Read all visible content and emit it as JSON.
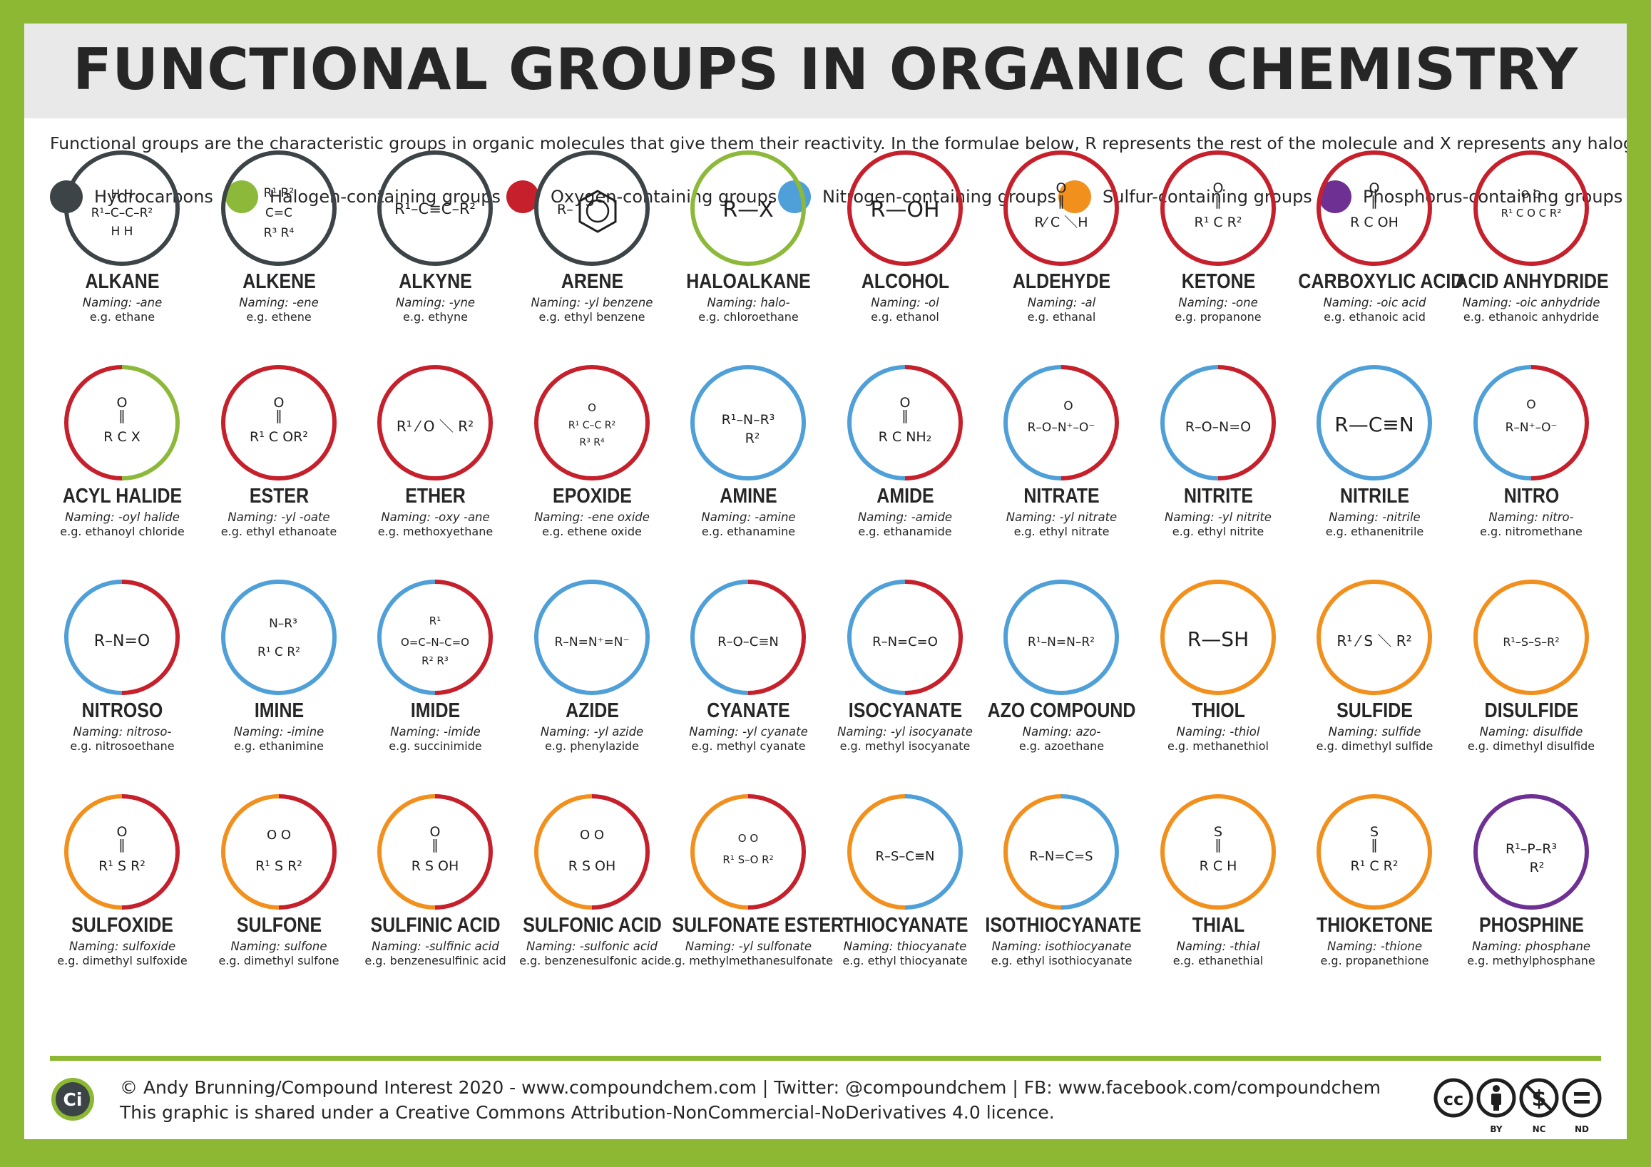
{
  "title": "FUNCTIONAL GROUPS IN ORGANIC CHEMISTRY",
  "intro": "Functional groups are the characteristic groups in organic molecules that give them their reactivity. In the formulae below, R represents the rest of the molecule and X represents any halogen atom.",
  "colors": {
    "hydrocarbon": "#3c4448",
    "halogen": "#8db93a",
    "oxygen": "#c5202b",
    "nitrogen": "#4f9fd8",
    "sulfur": "#f2901e",
    "phosphorus": "#6e3193",
    "page_border": "#8cb833"
  },
  "legend": [
    {
      "label": "Hydrocarbons",
      "color": "#3c4448"
    },
    {
      "label": "Halogen-containing groups",
      "color": "#8db93a"
    },
    {
      "label": "Oxygen-containing groups",
      "color": "#c5202b"
    },
    {
      "label": "Nitrogen-containing groups",
      "color": "#4f9fd8"
    },
    {
      "label": "Sulfur-containing groups",
      "color": "#f2901e"
    },
    {
      "label": "Phosphorus-containing groups",
      "color": "#6e3193"
    }
  ],
  "groups": [
    {
      "name": "ALKANE",
      "naming": "Naming: -ane",
      "example": "e.g. ethane",
      "ring": [
        "hydrocarbon"
      ]
    },
    {
      "name": "ALKENE",
      "naming": "Naming: -ene",
      "example": "e.g. ethene",
      "ring": [
        "hydrocarbon"
      ]
    },
    {
      "name": "ALKYNE",
      "naming": "Naming: -yne",
      "example": "e.g. ethyne",
      "ring": [
        "hydrocarbon"
      ]
    },
    {
      "name": "ARENE",
      "naming": "Naming: -yl benzene",
      "example": "e.g. ethyl benzene",
      "ring": [
        "hydrocarbon"
      ]
    },
    {
      "name": "HALOALKANE",
      "naming": "Naming: halo-",
      "example": "e.g. chloroethane",
      "ring": [
        "halogen"
      ]
    },
    {
      "name": "ALCOHOL",
      "naming": "Naming: -ol",
      "example": "e.g. ethanol",
      "ring": [
        "oxygen"
      ]
    },
    {
      "name": "ALDEHYDE",
      "naming": "Naming: -al",
      "example": "e.g. ethanal",
      "ring": [
        "oxygen"
      ]
    },
    {
      "name": "KETONE",
      "naming": "Naming: -one",
      "example": "e.g. propanone",
      "ring": [
        "oxygen"
      ]
    },
    {
      "name": "CARBOXYLIC ACID",
      "naming": "Naming: -oic acid",
      "example": "e.g. ethanoic acid",
      "ring": [
        "oxygen"
      ]
    },
    {
      "name": "ACID ANHYDRIDE",
      "naming": "Naming: -oic anhydride",
      "example": "e.g. ethanoic anhydride",
      "ring": [
        "oxygen"
      ]
    },
    {
      "name": "ACYL HALIDE",
      "naming": "Naming: -oyl halide",
      "example": "e.g. ethanoyl chloride",
      "ring": [
        "oxygen",
        "halogen"
      ]
    },
    {
      "name": "ESTER",
      "naming": "Naming: -yl -oate",
      "example": "e.g. ethyl ethanoate",
      "ring": [
        "oxygen"
      ]
    },
    {
      "name": "ETHER",
      "naming": "Naming: -oxy -ane",
      "example": "e.g. methoxyethane",
      "ring": [
        "oxygen"
      ]
    },
    {
      "name": "EPOXIDE",
      "naming": "Naming: -ene oxide",
      "example": "e.g. ethene oxide",
      "ring": [
        "oxygen"
      ]
    },
    {
      "name": "AMINE",
      "naming": "Naming: -amine",
      "example": "e.g. ethanamine",
      "ring": [
        "nitrogen"
      ]
    },
    {
      "name": "AMIDE",
      "naming": "Naming: -amide",
      "example": "e.g. ethanamide",
      "ring": [
        "nitrogen",
        "oxygen"
      ]
    },
    {
      "name": "NITRATE",
      "naming": "Naming: -yl nitrate",
      "example": "e.g. ethyl nitrate",
      "ring": [
        "nitrogen",
        "oxygen"
      ]
    },
    {
      "name": "NITRITE",
      "naming": "Naming: -yl nitrite",
      "example": "e.g. ethyl nitrite",
      "ring": [
        "nitrogen",
        "oxygen"
      ]
    },
    {
      "name": "NITRILE",
      "naming": "Naming: -nitrile",
      "example": "e.g. ethanenitrile",
      "ring": [
        "nitrogen"
      ]
    },
    {
      "name": "NITRO",
      "naming": "Naming: nitro-",
      "example": "e.g. nitromethane",
      "ring": [
        "nitrogen",
        "oxygen"
      ]
    },
    {
      "name": "NITROSO",
      "naming": "Naming: nitroso-",
      "example": "e.g. nitrosoethane",
      "ring": [
        "nitrogen",
        "oxygen"
      ]
    },
    {
      "name": "IMINE",
      "naming": "Naming: -imine",
      "example": "e.g. ethanimine",
      "ring": [
        "nitrogen"
      ]
    },
    {
      "name": "IMIDE",
      "naming": "Naming: -imide",
      "example": "e.g. succinimide",
      "ring": [
        "nitrogen",
        "oxygen"
      ]
    },
    {
      "name": "AZIDE",
      "naming": "Naming: -yl azide",
      "example": "e.g. phenylazide",
      "ring": [
        "nitrogen"
      ]
    },
    {
      "name": "CYANATE",
      "naming": "Naming: -yl cyanate",
      "example": "e.g. methyl cyanate",
      "ring": [
        "nitrogen",
        "oxygen"
      ]
    },
    {
      "name": "ISOCYANATE",
      "naming": "Naming: -yl isocyanate",
      "example": "e.g. methyl isocyanate",
      "ring": [
        "nitrogen",
        "oxygen"
      ]
    },
    {
      "name": "AZO COMPOUND",
      "naming": "Naming: azo-",
      "example": "e.g. azoethane",
      "ring": [
        "nitrogen"
      ]
    },
    {
      "name": "THIOL",
      "naming": "Naming: -thiol",
      "example": "e.g. methanethiol",
      "ring": [
        "sulfur"
      ]
    },
    {
      "name": "SULFIDE",
      "naming": "Naming: sulfide",
      "example": "e.g. dimethyl sulfide",
      "ring": [
        "sulfur"
      ]
    },
    {
      "name": "DISULFIDE",
      "naming": "Naming: disulfide",
      "example": "e.g. dimethyl disulfide",
      "ring": [
        "sulfur"
      ]
    },
    {
      "name": "SULFOXIDE",
      "naming": "Naming: sulfoxide",
      "example": "e.g. dimethyl sulfoxide",
      "ring": [
        "sulfur",
        "oxygen"
      ]
    },
    {
      "name": "SULFONE",
      "naming": "Naming: sulfone",
      "example": "e.g. dimethyl sulfone",
      "ring": [
        "sulfur",
        "oxygen"
      ]
    },
    {
      "name": "SULFINIC ACID",
      "naming": "Naming: -sulfinic acid",
      "example": "e.g. benzenesulfinic acid",
      "ring": [
        "sulfur",
        "oxygen"
      ]
    },
    {
      "name": "SULFONIC ACID",
      "naming": "Naming: -sulfonic acid",
      "example": "e.g. benzenesulfonic acid",
      "ring": [
        "sulfur",
        "oxygen"
      ]
    },
    {
      "name": "SULFONATE ESTER",
      "naming": "Naming: -yl sulfonate",
      "example": "e.g. methylmethanesulfonate",
      "ring": [
        "sulfur",
        "oxygen"
      ]
    },
    {
      "name": "THIOCYANATE",
      "naming": "Naming: thiocyanate",
      "example": "e.g. ethyl thiocyanate",
      "ring": [
        "sulfur",
        "nitrogen"
      ]
    },
    {
      "name": "ISOTHIOCYANATE",
      "naming": "Naming: isothiocyanate",
      "example": "e.g. ethyl isothiocyanate",
      "ring": [
        "sulfur",
        "nitrogen"
      ]
    },
    {
      "name": "THIAL",
      "naming": "Naming: -thial",
      "example": "e.g. ethanethial",
      "ring": [
        "sulfur"
      ]
    },
    {
      "name": "THIOKETONE",
      "naming": "Naming: -thione",
      "example": "e.g. propanethione",
      "ring": [
        "sulfur"
      ]
    },
    {
      "name": "PHOSPHINE",
      "naming": "Naming: phosphane",
      "example": "e.g. methylphosphane",
      "ring": [
        "phosphorus"
      ]
    }
  ],
  "footer": {
    "logo_text": "Ci",
    "line1": "© Andy Brunning/Compound Interest 2020 - www.compoundchem.com | Twitter: @compoundchem | FB: www.facebook.com/compoundchem",
    "line2": "This graphic is shared under a Creative Commons Attribution-NonCommercial-NoDerivatives 4.0 licence.",
    "cc_icons": [
      "cc-icon",
      "by-icon",
      "nc-icon",
      "nd-icon"
    ],
    "cc_text": "cc",
    "cc_labels": [
      "BY",
      "NC",
      "ND"
    ]
  }
}
